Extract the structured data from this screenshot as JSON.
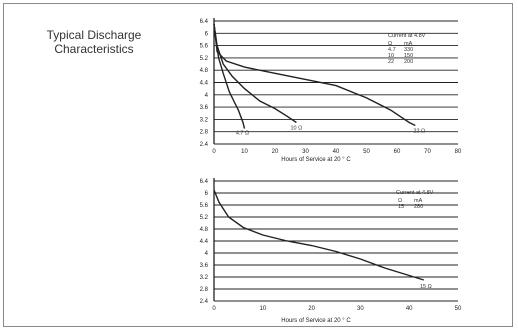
{
  "page": {
    "title": "Typical Discharge Characteristics"
  },
  "chart_data": [
    {
      "type": "line",
      "xlabel": "Hours of Service at 20 ° C",
      "ylabel": "",
      "xlim": [
        0,
        80
      ],
      "ylim": [
        2.4,
        6.4
      ],
      "xticks": [
        0,
        10,
        20,
        30,
        40,
        50,
        60,
        70,
        80
      ],
      "yticks": [
        2.4,
        2.8,
        3.2,
        3.6,
        4,
        4.4,
        4.8,
        5.2,
        5.6,
        6,
        6.4
      ],
      "grid": true,
      "legend": {
        "title": "Current at 4.8V",
        "headers": [
          "Ω",
          "mA"
        ],
        "rows": [
          [
            "4.7",
            "330"
          ],
          [
            "10",
            "150"
          ],
          [
            "22",
            "200"
          ]
        ]
      },
      "series": [
        {
          "name": "4.7 Ω",
          "x": [
            0,
            0.5,
            1.5,
            3,
            5,
            6.5,
            8,
            9.5,
            10
          ],
          "y": [
            6.3,
            5.9,
            5.2,
            4.7,
            4.1,
            3.8,
            3.5,
            3.1,
            2.9
          ]
        },
        {
          "name": "10 Ω",
          "x": [
            0,
            1,
            3,
            6,
            10,
            15,
            20,
            24,
            27
          ],
          "y": [
            6.3,
            5.6,
            5.0,
            4.6,
            4.2,
            3.8,
            3.55,
            3.3,
            3.1
          ]
        },
        {
          "name": "22 Ω",
          "x": [
            0,
            1,
            4,
            10,
            20,
            30,
            40,
            50,
            58,
            64,
            66
          ],
          "y": [
            6.3,
            5.4,
            5.1,
            4.9,
            4.7,
            4.5,
            4.3,
            3.9,
            3.5,
            3.1,
            3.0
          ]
        }
      ],
      "annotations": [
        "4.7 Ω",
        "10 Ω",
        "22 Ω"
      ]
    },
    {
      "type": "line",
      "xlabel": "Hours of Service at 20 ° C",
      "ylabel": "",
      "xlim": [
        0,
        50
      ],
      "ylim": [
        2.4,
        6.4
      ],
      "xticks": [
        0,
        10,
        20,
        30,
        40,
        50
      ],
      "yticks": [
        2.4,
        2.8,
        3.2,
        3.6,
        4,
        4.4,
        4.8,
        5.2,
        5.6,
        6,
        6.4
      ],
      "grid": true,
      "legend": {
        "title": "Current at 4.8V",
        "headers": [
          "Ω",
          "mA"
        ],
        "rows": [
          [
            "15",
            "280"
          ]
        ]
      },
      "series": [
        {
          "name": "15 Ω",
          "x": [
            0,
            1,
            3,
            6,
            10,
            15,
            20,
            25,
            30,
            35,
            40,
            43
          ],
          "y": [
            6.1,
            5.7,
            5.2,
            4.85,
            4.6,
            4.4,
            4.25,
            4.05,
            3.8,
            3.5,
            3.25,
            3.1
          ]
        }
      ],
      "annotations": [
        "15 Ω"
      ]
    }
  ]
}
